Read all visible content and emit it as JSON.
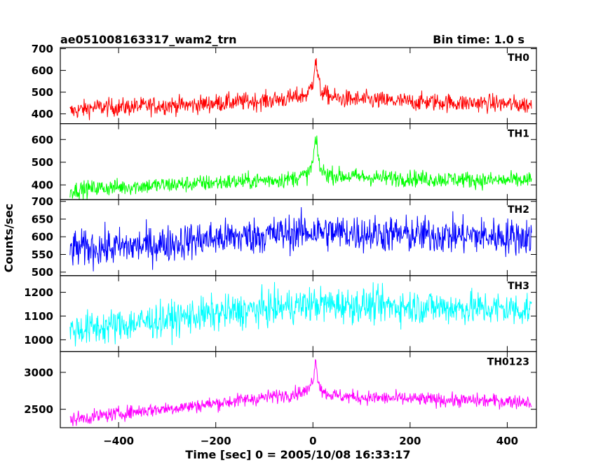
{
  "header": {
    "title": "ae051008163317_wam2_trn",
    "bin_time": "Bin time: 1.0 s"
  },
  "chart_data": {
    "type": "line",
    "title": "ae051008163317_wam2_trn",
    "xlabel": "Time [sec] 0 = 2005/10/08 16:33:17",
    "ylabel": "Counts/sec",
    "xlim": [
      -520,
      460
    ],
    "xticks": [
      -400,
      -200,
      0,
      200,
      400
    ],
    "xtick_labels": [
      "−400",
      "−200",
      "0",
      "200",
      "400"
    ],
    "panels": [
      {
        "name": "TH0",
        "color": "#ff0000",
        "ylim": [
          355,
          705
        ],
        "yticks": [
          400,
          500,
          600,
          700
        ],
        "ytick_labels": [
          "400",
          "500",
          "600",
          "700"
        ],
        "x": [
          -500,
          -450,
          -400,
          -350,
          -300,
          -250,
          -200,
          -150,
          -100,
          -50,
          -10,
          0,
          5,
          10,
          15,
          25,
          50,
          100,
          150,
          200,
          250,
          300,
          350,
          400,
          450
        ],
        "y": [
          410,
          430,
          430,
          435,
          440,
          440,
          450,
          455,
          460,
          470,
          490,
          550,
          650,
          580,
          510,
          490,
          470,
          465,
          460,
          455,
          455,
          450,
          450,
          445,
          440
        ],
        "noise": 40
      },
      {
        "name": "TH1",
        "color": "#00ff00",
        "ylim": [
          335,
          670
        ],
        "yticks": [
          400,
          500,
          600
        ],
        "ytick_labels": [
          "400",
          "500",
          "600"
        ],
        "x": [
          -500,
          -450,
          -400,
          -350,
          -300,
          -250,
          -200,
          -150,
          -100,
          -50,
          -10,
          0,
          5,
          10,
          15,
          25,
          50,
          100,
          150,
          200,
          250,
          300,
          350,
          400,
          450
        ],
        "y": [
          375,
          385,
          390,
          395,
          400,
          405,
          410,
          415,
          420,
          425,
          445,
          500,
          600,
          540,
          470,
          450,
          440,
          435,
          430,
          430,
          425,
          425,
          420,
          420,
          420
        ],
        "noise": 35
      },
      {
        "name": "TH2",
        "color": "#0000ff",
        "ylim": [
          490,
          705
        ],
        "yticks": [
          500,
          550,
          600,
          650,
          700
        ],
        "ytick_labels": [
          "500",
          "550",
          "600",
          "650",
          "700"
        ],
        "x": [
          -500,
          -450,
          -400,
          -350,
          -300,
          -250,
          -200,
          -150,
          -100,
          -50,
          0,
          50,
          100,
          150,
          200,
          250,
          300,
          350,
          400,
          450
        ],
        "y": [
          565,
          568,
          570,
          575,
          580,
          590,
          595,
          600,
          605,
          610,
          615,
          612,
          610,
          608,
          605,
          605,
          603,
          602,
          600,
          600
        ],
        "noise": 50
      },
      {
        "name": "TH3",
        "color": "#00ffff",
        "ylim": [
          950,
          1270
        ],
        "yticks": [
          1000,
          1100,
          1200
        ],
        "ytick_labels": [
          "1000",
          "1100",
          "1200"
        ],
        "x": [
          -500,
          -450,
          -400,
          -350,
          -300,
          -250,
          -200,
          -150,
          -100,
          -50,
          0,
          50,
          100,
          150,
          200,
          250,
          300,
          350,
          400,
          450
        ],
        "y": [
          1040,
          1050,
          1060,
          1075,
          1085,
          1100,
          1110,
          1120,
          1130,
          1140,
          1150,
          1148,
          1145,
          1142,
          1140,
          1138,
          1135,
          1132,
          1130,
          1128
        ],
        "noise": 70
      },
      {
        "name": "TH0123",
        "color": "#ff00ff",
        "ylim": [
          2250,
          3280
        ],
        "yticks": [
          2500,
          3000
        ],
        "ytick_labels": [
          "2500",
          "3000"
        ],
        "x": [
          -500,
          -450,
          -400,
          -350,
          -300,
          -250,
          -200,
          -150,
          -100,
          -50,
          -10,
          0,
          5,
          10,
          15,
          25,
          50,
          100,
          150,
          200,
          250,
          300,
          350,
          400,
          450
        ],
        "y": [
          2360,
          2400,
          2440,
          2480,
          2510,
          2540,
          2580,
          2620,
          2660,
          2700,
          2750,
          2900,
          3150,
          2950,
          2800,
          2720,
          2680,
          2660,
          2650,
          2640,
          2630,
          2620,
          2615,
          2610,
          2600
        ],
        "noise": 90
      }
    ]
  }
}
